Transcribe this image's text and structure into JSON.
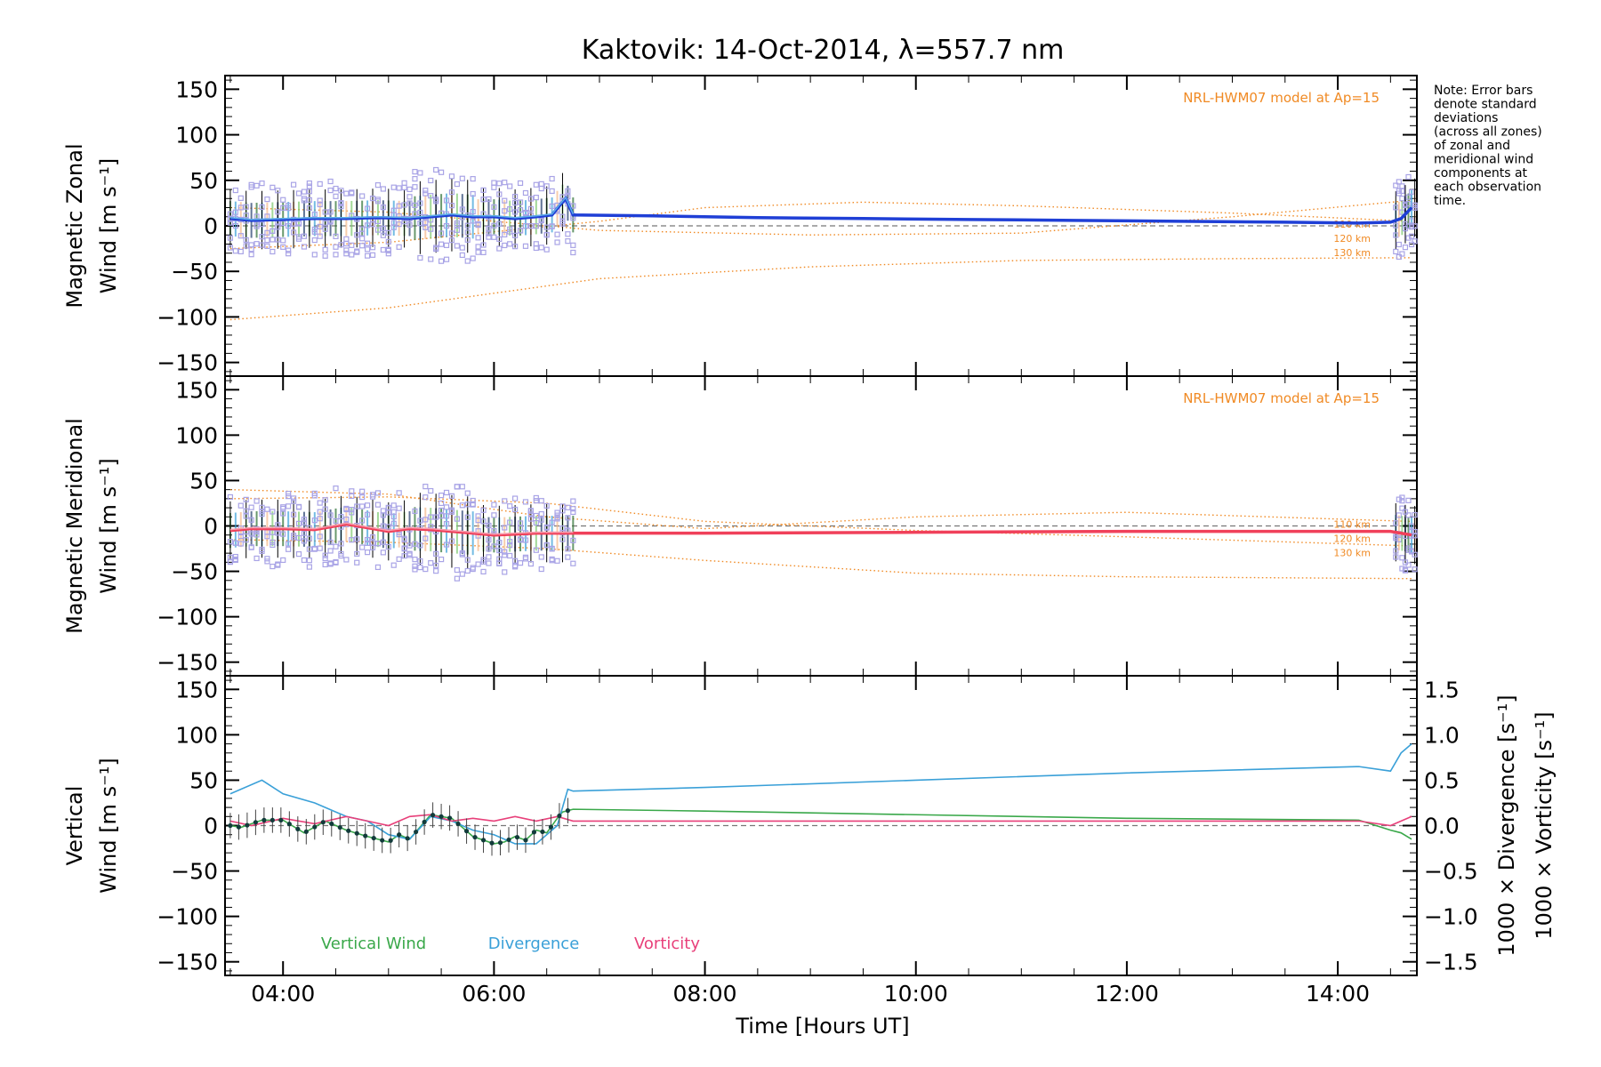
{
  "chart_data": {
    "type": "line",
    "title": "Kaktovik: 14-Oct-2014, λ=557.7 nm",
    "xlabel": "Time [Hours UT]",
    "x_ticks": [
      "04:00",
      "06:00",
      "08:00",
      "10:00",
      "12:00",
      "14:00"
    ],
    "x_tick_hours": [
      4,
      6,
      8,
      10,
      12,
      14
    ],
    "xlim_hours": [
      3.45,
      14.75
    ],
    "note_lines": [
      "Note: Error bars",
      "denote standard",
      "deviations",
      "(across all zones)",
      "of zonal and",
      "meridional wind",
      "components at",
      "each observation",
      "time."
    ],
    "panels": [
      {
        "id": "zonal",
        "ylabel_line1": "Magnetic Zonal",
        "ylabel_line2": "Wind [m s⁻¹]",
        "ylim": [
          -165,
          165
        ],
        "y_ticks": [
          "150",
          "100",
          "50",
          "0",
          "−50",
          "−100",
          "−150"
        ],
        "y_tick_values": [
          150,
          100,
          50,
          0,
          -50,
          -100,
          -150
        ],
        "model_label": "NRL-HWM07 model at Ap=15",
        "altitude_labels": [
          "110 km",
          "120 km",
          "130 km"
        ],
        "series": [
          {
            "name": "",
            "color": "#1f3fd6",
            "x": [
              3.5,
              3.7,
              4.0,
              4.3,
              4.6,
              4.9,
              5.2,
              5.4,
              5.6,
              5.8,
              6.0,
              6.2,
              6.4,
              6.55,
              6.62,
              6.68,
              6.75,
              7.5,
              8.5,
              9.5,
              10.5,
              11.5,
              12.5,
              13.5,
              14.2,
              14.5,
              14.6,
              14.7
            ],
            "y": [
              8,
              6,
              7,
              8,
              8,
              9,
              8,
              10,
              12,
              10,
              10,
              8,
              10,
              12,
              22,
              30,
              12,
              11,
              9,
              8,
              7,
              6,
              5,
              4,
              3,
              4,
              8,
              20
            ]
          }
        ],
        "model_curves": [
          {
            "x": [
              3.5,
              5,
              7,
              9,
              11,
              13,
              14.7
            ],
            "y": [
              -103,
              -90,
              -58,
              -45,
              -38,
              -36,
              -35
            ]
          },
          {
            "x": [
              3.5,
              5,
              7,
              8,
              9.5,
              11,
              13,
              14.7
            ],
            "y": [
              -25,
              -18,
              5,
              20,
              26,
              22,
              14,
              5
            ]
          },
          {
            "x": [
              3.5,
              5,
              7,
              9,
              11,
              13,
              14.7
            ],
            "y": [
              20,
              15,
              -5,
              -10,
              -8,
              10,
              28
            ]
          }
        ]
      },
      {
        "id": "meridional",
        "ylabel_line1": "Magnetic Meridional",
        "ylabel_line2": "Wind [m s⁻¹]",
        "ylim": [
          -165,
          165
        ],
        "y_ticks": [
          "150",
          "100",
          "50",
          "0",
          "−50",
          "−100",
          "−150"
        ],
        "y_tick_values": [
          150,
          100,
          50,
          0,
          -50,
          -100,
          -150
        ],
        "model_label": "NRL-HWM07 model at Ap=15",
        "altitude_labels": [
          "110 km",
          "120 km",
          "130 km"
        ],
        "series": [
          {
            "name": "",
            "color": "#f0405a",
            "x": [
              3.5,
              3.7,
              4.0,
              4.3,
              4.6,
              4.8,
              5.0,
              5.2,
              5.4,
              5.6,
              5.8,
              6.0,
              6.2,
              6.4,
              6.6,
              6.75,
              8,
              10,
              12,
              14.2,
              14.5,
              14.7
            ],
            "y": [
              -5,
              -3,
              -3,
              -4,
              2,
              -2,
              -6,
              -3,
              -4,
              -6,
              -8,
              -10,
              -9,
              -8,
              -8,
              -8,
              -8,
              -7,
              -6,
              -6,
              -6,
              -10
            ]
          }
        ],
        "model_curves": [
          {
            "x": [
              3.5,
              5,
              6.5,
              8,
              10,
              12,
              14.7
            ],
            "y": [
              -15,
              -18,
              -25,
              -38,
              -52,
              -56,
              -58
            ]
          },
          {
            "x": [
              3.5,
              5,
              6.5,
              8,
              10,
              12,
              14.7
            ],
            "y": [
              30,
              32,
              25,
              5,
              -5,
              -12,
              -22
            ]
          },
          {
            "x": [
              3.5,
              5,
              6.5,
              8,
              10,
              12,
              14.7
            ],
            "y": [
              40,
              35,
              10,
              -3,
              10,
              15,
              5
            ]
          }
        ]
      },
      {
        "id": "vertical",
        "ylabel_line1": "Vertical",
        "ylabel_line2": "Wind [m s⁻¹]",
        "ylim": [
          -165,
          165
        ],
        "y_ticks": [
          "150",
          "100",
          "50",
          "0",
          "−50",
          "−100",
          "−150"
        ],
        "y_tick_values": [
          150,
          100,
          50,
          0,
          -50,
          -100,
          -150
        ],
        "right_ylabel_1": "1000 × Divergence [s⁻¹]",
        "right_ylabel_2": "1000 × Vorticity [s⁻¹]",
        "right_ylim": [
          -1.65,
          1.65
        ],
        "right_ticks": [
          "1.5",
          "1.0",
          "0.5",
          "0.0",
          "−0.5",
          "−1.0",
          "−1.5"
        ],
        "right_tick_values": [
          1.5,
          1.0,
          0.5,
          0.0,
          -0.5,
          -1.0,
          -1.5
        ],
        "legend": [
          "Vertical Wind",
          "Divergence",
          "Vorticity"
        ],
        "series": [
          {
            "name": "Vertical Wind",
            "color": "#3aa84a",
            "axis": "left",
            "x": [
              3.5,
              3.6,
              3.8,
              4.0,
              4.2,
              4.4,
              4.6,
              4.8,
              5.0,
              5.1,
              5.2,
              5.4,
              5.6,
              5.8,
              6.0,
              6.1,
              6.2,
              6.3,
              6.4,
              6.5,
              6.6,
              6.65,
              6.75,
              8,
              10,
              12,
              14.2,
              14.5,
              14.6,
              14.7
            ],
            "y": [
              0,
              -2,
              6,
              6,
              -8,
              5,
              -5,
              -12,
              -18,
              -10,
              -15,
              12,
              8,
              -12,
              -20,
              -18,
              -12,
              -16,
              -5,
              -8,
              8,
              15,
              18,
              16,
              12,
              8,
              6,
              -5,
              -8,
              -15
            ]
          },
          {
            "name": "Divergence",
            "color": "#3aa0d8",
            "axis": "right",
            "x": [
              3.5,
              3.8,
              4.0,
              4.3,
              4.6,
              4.8,
              5.0,
              5.2,
              5.4,
              5.6,
              5.8,
              6.0,
              6.2,
              6.4,
              6.6,
              6.7,
              6.75,
              8,
              10,
              12,
              14.2,
              14.5,
              14.6,
              14.7
            ],
            "y": [
              0.35,
              0.5,
              0.35,
              0.25,
              0.1,
              0.05,
              -0.1,
              -0.15,
              0.1,
              0.05,
              -0.05,
              -0.1,
              -0.2,
              -0.2,
              0.0,
              0.4,
              0.38,
              0.42,
              0.5,
              0.58,
              0.65,
              0.6,
              0.8,
              0.9
            ]
          },
          {
            "name": "Vorticity",
            "color": "#e8407a",
            "axis": "right",
            "x": [
              3.5,
              3.7,
              4.0,
              4.3,
              4.6,
              4.8,
              5.0,
              5.2,
              5.4,
              5.6,
              5.8,
              6.0,
              6.2,
              6.4,
              6.6,
              6.75,
              8,
              10,
              12,
              14.2,
              14.5,
              14.7
            ],
            "y": [
              0.05,
              0.0,
              0.08,
              0.02,
              0.1,
              0.05,
              0.0,
              0.1,
              0.12,
              0.05,
              0.08,
              0.05,
              0.1,
              0.05,
              0.1,
              0.05,
              0.05,
              0.05,
              0.05,
              0.05,
              0.0,
              0.1
            ]
          }
        ]
      }
    ]
  }
}
